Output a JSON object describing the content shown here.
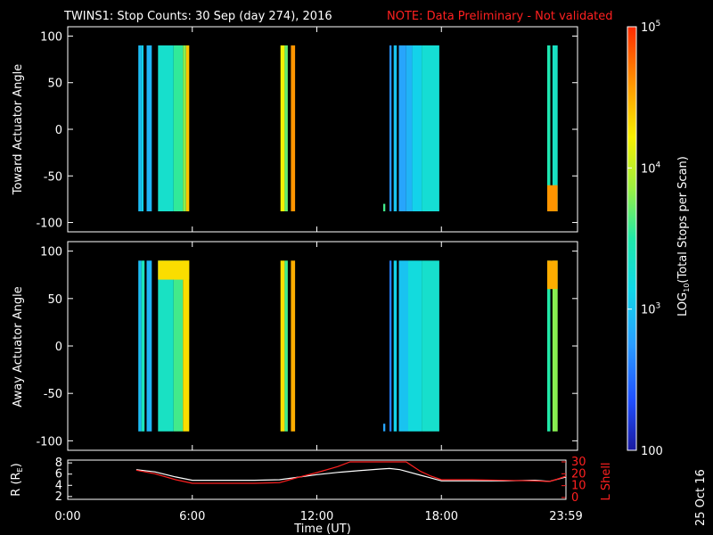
{
  "header": {
    "title": "TWINS1: Stop Counts: 30 Sep (day 274), 2016",
    "note": "NOTE: Data Preliminary - Not validated"
  },
  "datestamp": "25 Oct 16",
  "colorbar": {
    "label_prefix": "LOG",
    "label_sub": "10",
    "label_suffix": "(Total Stops per Scan)",
    "ticks": [
      "10",
      "10",
      "10",
      "100"
    ],
    "tick_exps": [
      "5",
      "4",
      "3",
      ""
    ],
    "scale": "log",
    "range": [
      100,
      100000
    ]
  },
  "colors": {
    "note": "#ff2020",
    "l_shell": "#ff2020",
    "r_line": "#ffffff"
  },
  "chart_data": [
    {
      "type": "heatmap",
      "ylabel": "Toward Actuator Angle",
      "ylim": [
        -110,
        110
      ],
      "yticks": [
        "100",
        "50",
        "0",
        "-50",
        "-100"
      ],
      "xlim": [
        0,
        24
      ],
      "segments": [
        {
          "x": [
            3.4,
            3.55
          ],
          "yrange": [
            -88,
            90
          ],
          "level": 2.95
        },
        {
          "x": [
            3.55,
            3.65
          ],
          "yrange": [
            -88,
            90
          ],
          "level": 3.1
        },
        {
          "x": [
            3.8,
            4.05
          ],
          "yrange": [
            -88,
            90
          ],
          "level": 2.9
        },
        {
          "x": [
            4.35,
            5.1
          ],
          "yrange": [
            -88,
            90
          ],
          "level": 3.3
        },
        {
          "x": [
            5.1,
            5.55
          ],
          "yrange": [
            -88,
            90
          ],
          "level": 3.55
        },
        {
          "x": [
            5.55,
            5.7
          ],
          "yrange": [
            -88,
            90
          ],
          "level": 3.8
        },
        {
          "x": [
            5.7,
            5.85
          ],
          "yrange": [
            -88,
            90
          ],
          "level": 4.4
        },
        {
          "x": [
            10.25,
            10.45
          ],
          "yrange": [
            -88,
            90
          ],
          "level": 4.2
        },
        {
          "x": [
            10.45,
            10.6
          ],
          "yrange": [
            -88,
            90
          ],
          "level": 3.7
        },
        {
          "x": [
            10.75,
            10.95
          ],
          "yrange": [
            -88,
            90
          ],
          "level": 4.6
        },
        {
          "x": [
            15.2,
            15.3
          ],
          "yrange": [
            -88,
            -80
          ],
          "level": 3.6
        },
        {
          "x": [
            15.5,
            15.6
          ],
          "yrange": [
            -88,
            90
          ],
          "level": 2.7
        },
        {
          "x": [
            15.7,
            15.85
          ],
          "yrange": [
            -88,
            90
          ],
          "level": 3.0
        },
        {
          "x": [
            15.95,
            16.3
          ],
          "yrange": [
            -88,
            90
          ],
          "level": 2.8
        },
        {
          "x": [
            16.3,
            16.6
          ],
          "yrange": [
            -88,
            90
          ],
          "level": 2.9
        },
        {
          "x": [
            16.6,
            17.05
          ],
          "yrange": [
            -88,
            90
          ],
          "level": 3.1
        },
        {
          "x": [
            17.05,
            17.9
          ],
          "yrange": [
            -88,
            90
          ],
          "level": 3.25
        },
        {
          "x": [
            23.1,
            23.25
          ],
          "yrange": [
            -88,
            90
          ],
          "level": 3.45
        },
        {
          "x": [
            23.35,
            23.6
          ],
          "yrange": [
            -88,
            90
          ],
          "level": 3.35
        },
        {
          "x": [
            23.1,
            23.6
          ],
          "yrange": [
            -88,
            -60
          ],
          "level": 4.6
        }
      ]
    },
    {
      "type": "heatmap",
      "ylabel": "Away Actuator Angle",
      "ylim": [
        -110,
        110
      ],
      "yticks": [
        "100",
        "50",
        "0",
        "-50",
        "-100"
      ],
      "xlim": [
        0,
        24
      ],
      "segments": [
        {
          "x": [
            3.4,
            3.55
          ],
          "yrange": [
            -90,
            90
          ],
          "level": 2.95
        },
        {
          "x": [
            3.55,
            3.7
          ],
          "yrange": [
            -90,
            90
          ],
          "level": 3.4
        },
        {
          "x": [
            3.8,
            4.05
          ],
          "yrange": [
            -90,
            90
          ],
          "level": 2.9
        },
        {
          "x": [
            4.35,
            5.1
          ],
          "yrange": [
            -90,
            90
          ],
          "level": 3.35
        },
        {
          "x": [
            5.1,
            5.55
          ],
          "yrange": [
            -90,
            90
          ],
          "level": 3.6
        },
        {
          "x": [
            5.55,
            5.85
          ],
          "yrange": [
            -90,
            90
          ],
          "level": 4.3
        },
        {
          "x": [
            4.35,
            5.85
          ],
          "yrange": [
            70,
            90
          ],
          "level": 4.3
        },
        {
          "x": [
            10.25,
            10.45
          ],
          "yrange": [
            -90,
            90
          ],
          "level": 4.3
        },
        {
          "x": [
            10.45,
            10.6
          ],
          "yrange": [
            -90,
            90
          ],
          "level": 3.6
        },
        {
          "x": [
            10.75,
            10.95
          ],
          "yrange": [
            -90,
            90
          ],
          "level": 4.5
        },
        {
          "x": [
            15.2,
            15.3
          ],
          "yrange": [
            -90,
            -82
          ],
          "level": 2.8
        },
        {
          "x": [
            15.5,
            15.6
          ],
          "yrange": [
            -90,
            90
          ],
          "level": 2.6
        },
        {
          "x": [
            15.7,
            15.85
          ],
          "yrange": [
            -90,
            90
          ],
          "level": 3.1
        },
        {
          "x": [
            15.95,
            16.4
          ],
          "yrange": [
            -90,
            90
          ],
          "level": 3.0
        },
        {
          "x": [
            16.4,
            17.05
          ],
          "yrange": [
            -90,
            90
          ],
          "level": 3.2
        },
        {
          "x": [
            17.05,
            17.9
          ],
          "yrange": [
            -90,
            90
          ],
          "level": 3.3
        },
        {
          "x": [
            23.1,
            23.25
          ],
          "yrange": [
            -90,
            90
          ],
          "level": 3.5
        },
        {
          "x": [
            23.35,
            23.6
          ],
          "yrange": [
            -90,
            90
          ],
          "level": 3.8
        },
        {
          "x": [
            23.1,
            23.6
          ],
          "yrange": [
            60,
            90
          ],
          "level": 4.5
        }
      ]
    },
    {
      "type": "line",
      "xlabel": "Time (UT)",
      "xticks": [
        "0:00",
        "6:00",
        "12:00",
        "18:00",
        "23:59"
      ],
      "xlim": [
        0,
        24
      ],
      "ylabel": "R (R",
      "ylabel_sub": "E",
      "ylabel_end": ")",
      "ylim": [
        1.5,
        8.5
      ],
      "yticks": [
        "8",
        "6",
        "4",
        "2"
      ],
      "y2label": "L Shell",
      "y2lim": [
        0,
        30
      ],
      "y2ticks": [
        "30",
        "20",
        "10",
        "0"
      ],
      "series": [
        {
          "axis": "left",
          "x": [
            3.3,
            4.2,
            5.2,
            6.0,
            7.5,
            9.0,
            10.2,
            11.0,
            12.0,
            13.0,
            14.0,
            15.0,
            15.5,
            16.0,
            16.5,
            17.0,
            17.5,
            18.0,
            19.5,
            21.0,
            22.5,
            23.2,
            23.5,
            24.0
          ],
          "y": [
            6.8,
            6.4,
            5.5,
            4.9,
            4.9,
            4.9,
            5.0,
            5.4,
            5.9,
            6.3,
            6.6,
            6.9,
            7.0,
            6.8,
            6.3,
            5.8,
            5.3,
            4.8,
            4.8,
            4.8,
            4.9,
            4.7,
            5.0,
            5.5
          ]
        },
        {
          "axis": "right",
          "x": [
            3.3,
            4.2,
            5.2,
            6.0,
            7.5,
            9.0,
            10.2,
            11.0,
            12.0,
            13.0,
            13.6,
            16.3,
            17.0,
            17.5,
            18.0,
            19.5,
            21.0,
            22.5,
            23.2,
            23.5,
            24.0
          ],
          "y": [
            23.0,
            20.0,
            15.0,
            12.0,
            12.0,
            12.0,
            12.5,
            16.5,
            21.0,
            26.0,
            30.0,
            30.0,
            22.0,
            18.0,
            15.0,
            15.0,
            14.5,
            14.0,
            13.5,
            15.0,
            18.0
          ]
        }
      ]
    }
  ]
}
